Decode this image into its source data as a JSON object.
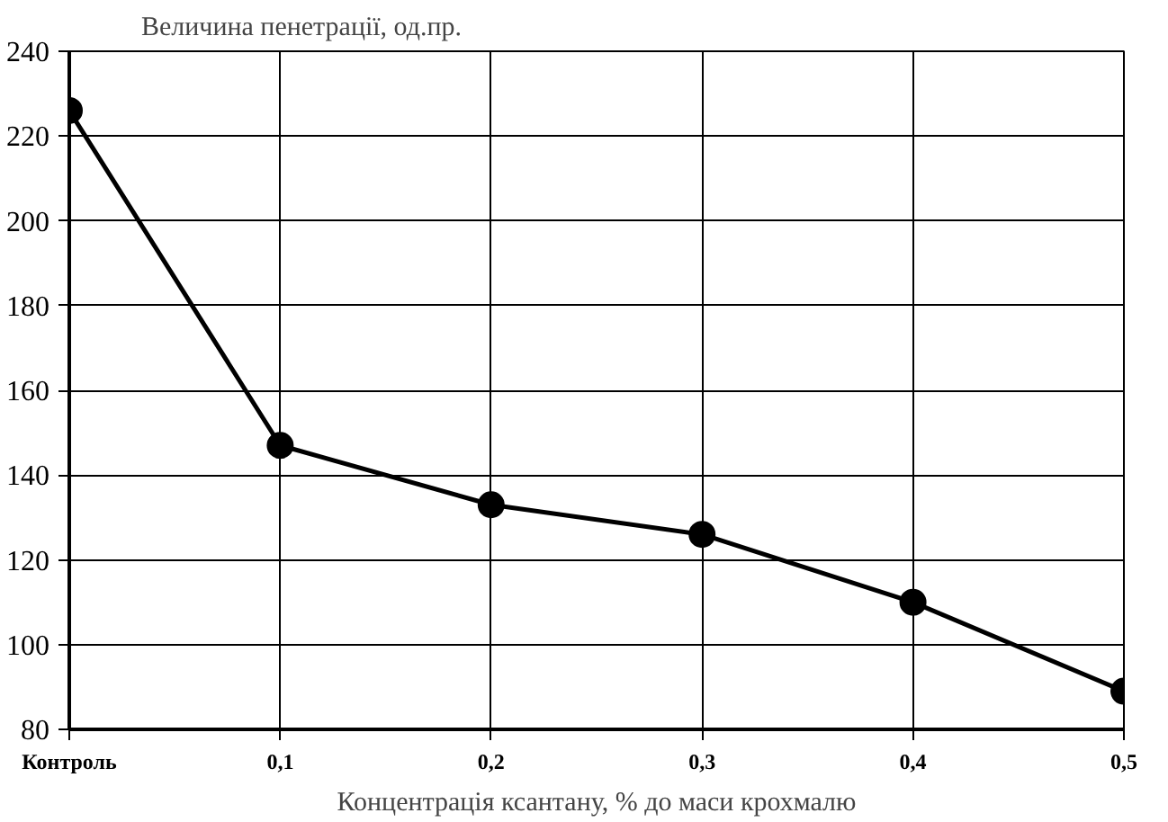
{
  "chart_data": {
    "type": "line",
    "ylabel": "Величина пенетрації, од.пр.",
    "xlabel": "Концентрація ксантану, % до маси крохмалю",
    "categories": [
      "Контроль",
      "0,1",
      "0,2",
      "0,3",
      "0,4",
      "0,5"
    ],
    "series": [
      {
        "color": "#000000",
        "values": [
          226,
          147,
          133,
          126,
          110,
          89
        ]
      }
    ],
    "ylim": [
      80,
      240
    ],
    "yticks": [
      80,
      100,
      120,
      140,
      160,
      180,
      200,
      220,
      240
    ],
    "grid": true,
    "marker": "circle",
    "line_style": "solid"
  }
}
